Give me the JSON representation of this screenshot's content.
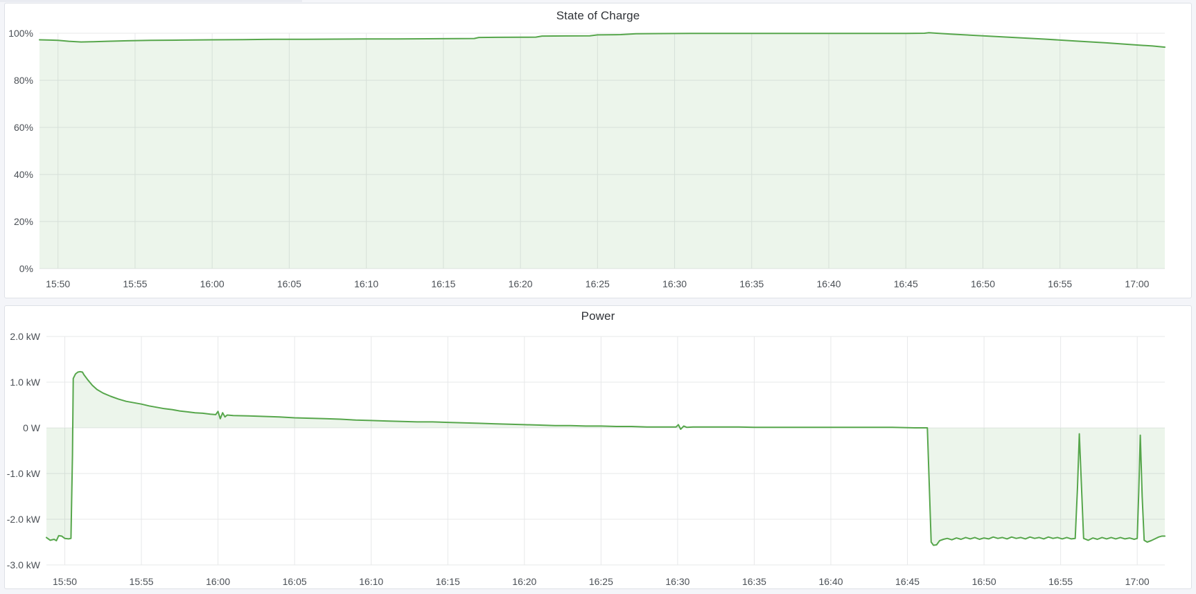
{
  "page": {
    "background": "#f4f5f9",
    "panel_background": "#ffffff",
    "panel_border": "#dde0e6"
  },
  "colors": {
    "series_green_line": "#56a64b",
    "series_green_fill": "rgba(86,166,75,0.11)",
    "gridline": "#e7e8ea",
    "axis_text": "#4b5056",
    "title_text": "#303338"
  },
  "panels": [
    {
      "title": "State of Charge"
    },
    {
      "title": "Power"
    }
  ],
  "chart_data": [
    {
      "type": "area",
      "title": "State of Charge",
      "unit": "percent",
      "legend_position": "none",
      "grid": true,
      "ylim": [
        0,
        100
      ],
      "xlim_minutes_after_1550": [
        -1.2,
        71.8
      ],
      "baseline": 0,
      "y_ticks": [
        {
          "label": "100%",
          "v": 100
        },
        {
          "label": "80%",
          "v": 80
        },
        {
          "label": "60%",
          "v": 60
        },
        {
          "label": "40%",
          "v": 40
        },
        {
          "label": "20%",
          "v": 20
        },
        {
          "label": "0%",
          "v": 0
        }
      ],
      "x_ticks": [
        {
          "label": "15:50",
          "t": 0
        },
        {
          "label": "15:55",
          "t": 5
        },
        {
          "label": "16:00",
          "t": 10
        },
        {
          "label": "16:05",
          "t": 15
        },
        {
          "label": "16:10",
          "t": 20
        },
        {
          "label": "16:15",
          "t": 25
        },
        {
          "label": "16:20",
          "t": 30
        },
        {
          "label": "16:25",
          "t": 35
        },
        {
          "label": "16:30",
          "t": 40
        },
        {
          "label": "16:35",
          "t": 45
        },
        {
          "label": "16:40",
          "t": 50
        },
        {
          "label": "16:45",
          "t": 55
        },
        {
          "label": "16:50",
          "t": 60
        },
        {
          "label": "16:55",
          "t": 65
        },
        {
          "label": "17:00",
          "t": 70
        }
      ],
      "series": [
        {
          "name": "State of Charge",
          "points": [
            [
              -1.2,
              97.2
            ],
            [
              -0.5,
              97.1
            ],
            [
              0,
              97.0
            ],
            [
              0.7,
              96.6
            ],
            [
              1.5,
              96.3
            ],
            [
              2.3,
              96.4
            ],
            [
              3.2,
              96.6
            ],
            [
              4.5,
              96.8
            ],
            [
              6,
              97.0
            ],
            [
              8,
              97.1
            ],
            [
              10,
              97.2
            ],
            [
              12,
              97.3
            ],
            [
              14,
              97.4
            ],
            [
              16,
              97.45
            ],
            [
              18,
              97.5
            ],
            [
              20,
              97.55
            ],
            [
              22,
              97.6
            ],
            [
              24,
              97.65
            ],
            [
              26,
              97.7
            ],
            [
              27,
              97.75
            ],
            [
              27.3,
              98.2
            ],
            [
              28.5,
              98.25
            ],
            [
              30,
              98.3
            ],
            [
              31,
              98.35
            ],
            [
              31.4,
              98.8
            ],
            [
              33,
              98.85
            ],
            [
              34.5,
              98.9
            ],
            [
              35,
              99.3
            ],
            [
              36.5,
              99.4
            ],
            [
              37.5,
              99.8
            ],
            [
              39,
              99.85
            ],
            [
              41,
              99.9
            ],
            [
              44,
              99.9
            ],
            [
              47,
              99.95
            ],
            [
              50,
              99.95
            ],
            [
              53,
              99.95
            ],
            [
              55,
              99.95
            ],
            [
              56.2,
              100.0
            ],
            [
              56.5,
              100.2
            ],
            [
              57,
              100.0
            ],
            [
              58,
              99.6
            ],
            [
              60,
              98.9
            ],
            [
              62,
              98.2
            ],
            [
              64,
              97.5
            ],
            [
              66,
              96.7
            ],
            [
              68,
              95.9
            ],
            [
              70,
              95.0
            ],
            [
              71,
              94.6
            ],
            [
              71.8,
              94.1
            ]
          ]
        }
      ]
    },
    {
      "type": "area",
      "title": "Power",
      "unit": "kW",
      "legend_position": "none",
      "grid": true,
      "ylim": [
        -3,
        2
      ],
      "xlim_minutes_after_1550": [
        -1.2,
        71.8
      ],
      "baseline": 0,
      "y_ticks": [
        {
          "label": "2.0 kW",
          "v": 2
        },
        {
          "label": "1.0 kW",
          "v": 1
        },
        {
          "label": "0 W",
          "v": 0
        },
        {
          "label": "-1.0 kW",
          "v": -1
        },
        {
          "label": "-2.0 kW",
          "v": -2
        },
        {
          "label": "-3.0 kW",
          "v": -3
        }
      ],
      "x_ticks": [
        {
          "label": "15:50",
          "t": 0
        },
        {
          "label": "15:55",
          "t": 5
        },
        {
          "label": "16:00",
          "t": 10
        },
        {
          "label": "16:05",
          "t": 15
        },
        {
          "label": "16:10",
          "t": 20
        },
        {
          "label": "16:15",
          "t": 25
        },
        {
          "label": "16:20",
          "t": 30
        },
        {
          "label": "16:25",
          "t": 35
        },
        {
          "label": "16:30",
          "t": 40
        },
        {
          "label": "16:35",
          "t": 45
        },
        {
          "label": "16:40",
          "t": 50
        },
        {
          "label": "16:45",
          "t": 55
        },
        {
          "label": "16:50",
          "t": 60
        },
        {
          "label": "16:55",
          "t": 65
        },
        {
          "label": "17:00",
          "t": 70
        }
      ],
      "series": [
        {
          "name": "Power",
          "points": [
            [
              -1.2,
              -2.4
            ],
            [
              -0.95,
              -2.46
            ],
            [
              -0.7,
              -2.44
            ],
            [
              -0.55,
              -2.47
            ],
            [
              -0.4,
              -2.36
            ],
            [
              -0.2,
              -2.37
            ],
            [
              0,
              -2.42
            ],
            [
              0.25,
              -2.43
            ],
            [
              0.4,
              -2.42
            ],
            [
              0.5,
              -0.6
            ],
            [
              0.55,
              1.08
            ],
            [
              0.7,
              1.18
            ],
            [
              0.85,
              1.22
            ],
            [
              1.0,
              1.23
            ],
            [
              1.15,
              1.22
            ],
            [
              1.25,
              1.16
            ],
            [
              1.5,
              1.05
            ],
            [
              1.8,
              0.93
            ],
            [
              2.1,
              0.84
            ],
            [
              2.5,
              0.76
            ],
            [
              3,
              0.69
            ],
            [
              3.5,
              0.63
            ],
            [
              4,
              0.58
            ],
            [
              4.5,
              0.55
            ],
            [
              5,
              0.52
            ],
            [
              5.5,
              0.48
            ],
            [
              6,
              0.45
            ],
            [
              6.5,
              0.42
            ],
            [
              7,
              0.4
            ],
            [
              7.5,
              0.37
            ],
            [
              8,
              0.35
            ],
            [
              8.5,
              0.33
            ],
            [
              9,
              0.32
            ],
            [
              9.5,
              0.3
            ],
            [
              9.85,
              0.29
            ],
            [
              10.0,
              0.36
            ],
            [
              10.15,
              0.2
            ],
            [
              10.3,
              0.33
            ],
            [
              10.45,
              0.24
            ],
            [
              10.6,
              0.28
            ],
            [
              11,
              0.27
            ],
            [
              12,
              0.26
            ],
            [
              13,
              0.25
            ],
            [
              14,
              0.24
            ],
            [
              15,
              0.22
            ],
            [
              16,
              0.21
            ],
            [
              17,
              0.2
            ],
            [
              18,
              0.19
            ],
            [
              19,
              0.17
            ],
            [
              20,
              0.16
            ],
            [
              21,
              0.15
            ],
            [
              22,
              0.14
            ],
            [
              23,
              0.13
            ],
            [
              24,
              0.13
            ],
            [
              25,
              0.12
            ],
            [
              26,
              0.11
            ],
            [
              27,
              0.1
            ],
            [
              28,
              0.09
            ],
            [
              29,
              0.08
            ],
            [
              30,
              0.07
            ],
            [
              31,
              0.06
            ],
            [
              32,
              0.05
            ],
            [
              33,
              0.05
            ],
            [
              34,
              0.04
            ],
            [
              35,
              0.04
            ],
            [
              36,
              0.03
            ],
            [
              37,
              0.03
            ],
            [
              38,
              0.02
            ],
            [
              39,
              0.02
            ],
            [
              39.9,
              0.02
            ],
            [
              40.05,
              0.07
            ],
            [
              40.2,
              -0.03
            ],
            [
              40.4,
              0.04
            ],
            [
              40.6,
              0.01
            ],
            [
              41,
              0.02
            ],
            [
              42,
              0.02
            ],
            [
              43,
              0.02
            ],
            [
              44,
              0.02
            ],
            [
              45,
              0.01
            ],
            [
              46,
              0.01
            ],
            [
              48,
              0.01
            ],
            [
              50,
              0.01
            ],
            [
              52,
              0.01
            ],
            [
              54,
              0.01
            ],
            [
              55.5,
              0.0
            ],
            [
              56.3,
              0.0
            ],
            [
              56.45,
              -1.5
            ],
            [
              56.55,
              -2.5
            ],
            [
              56.7,
              -2.57
            ],
            [
              56.9,
              -2.56
            ],
            [
              57.1,
              -2.47
            ],
            [
              57.35,
              -2.44
            ],
            [
              57.6,
              -2.42
            ],
            [
              57.9,
              -2.45
            ],
            [
              58.2,
              -2.41
            ],
            [
              58.5,
              -2.44
            ],
            [
              58.8,
              -2.4
            ],
            [
              59.1,
              -2.43
            ],
            [
              59.4,
              -2.4
            ],
            [
              59.7,
              -2.44
            ],
            [
              60,
              -2.41
            ],
            [
              60.3,
              -2.43
            ],
            [
              60.6,
              -2.39
            ],
            [
              60.9,
              -2.42
            ],
            [
              61.2,
              -2.4
            ],
            [
              61.5,
              -2.43
            ],
            [
              61.8,
              -2.39
            ],
            [
              62.1,
              -2.42
            ],
            [
              62.4,
              -2.4
            ],
            [
              62.7,
              -2.43
            ],
            [
              63,
              -2.39
            ],
            [
              63.3,
              -2.42
            ],
            [
              63.6,
              -2.4
            ],
            [
              63.9,
              -2.43
            ],
            [
              64.2,
              -2.39
            ],
            [
              64.5,
              -2.42
            ],
            [
              64.8,
              -2.4
            ],
            [
              65.1,
              -2.43
            ],
            [
              65.4,
              -2.4
            ],
            [
              65.7,
              -2.43
            ],
            [
              65.95,
              -2.42
            ],
            [
              66.1,
              -1.3
            ],
            [
              66.22,
              -0.13
            ],
            [
              66.35,
              -1.2
            ],
            [
              66.5,
              -2.42
            ],
            [
              66.8,
              -2.46
            ],
            [
              67.1,
              -2.41
            ],
            [
              67.4,
              -2.44
            ],
            [
              67.7,
              -2.4
            ],
            [
              68,
              -2.43
            ],
            [
              68.3,
              -2.4
            ],
            [
              68.6,
              -2.43
            ],
            [
              68.9,
              -2.4
            ],
            [
              69.2,
              -2.43
            ],
            [
              69.5,
              -2.41
            ],
            [
              69.8,
              -2.44
            ],
            [
              70.0,
              -2.42
            ],
            [
              70.1,
              -1.4
            ],
            [
              70.2,
              -0.16
            ],
            [
              70.32,
              -1.5
            ],
            [
              70.45,
              -2.46
            ],
            [
              70.65,
              -2.5
            ],
            [
              70.9,
              -2.47
            ],
            [
              71.15,
              -2.43
            ],
            [
              71.4,
              -2.39
            ],
            [
              71.6,
              -2.37
            ],
            [
              71.8,
              -2.37
            ]
          ]
        }
      ]
    }
  ]
}
